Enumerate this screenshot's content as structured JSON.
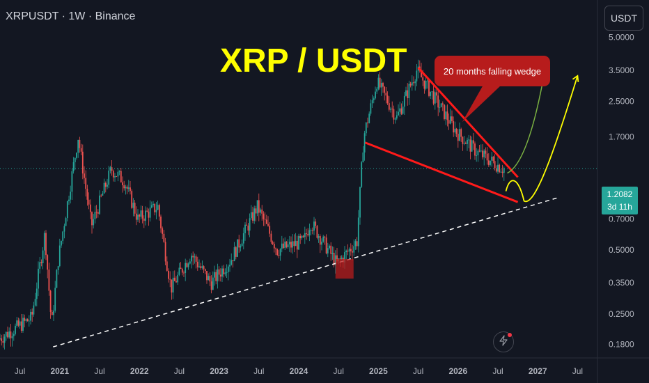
{
  "header": {
    "symbol": "XRPUSDT · 1W · Binance",
    "currency_button": "USDT"
  },
  "current_price": {
    "value": "1.2082",
    "countdown": "3d 11h"
  },
  "colors": {
    "background": "#131722",
    "up": "#26a69a",
    "down": "#ef5350",
    "wedge": "#ff1a1a",
    "title": "#ffff00",
    "callout": "#b71c1c",
    "projection_green": "#7cb342",
    "projection_yellow": "#ffff00",
    "support_line": "#ffffff"
  },
  "icons": {
    "alert": "lightning-bolt-icon"
  },
  "chart_data": {
    "type": "candlestick",
    "title": "XRP / USDT",
    "y_scale": "log",
    "ylim": [
      0.16,
      7.5
    ],
    "x_range": [
      "2020-04",
      "2027-10"
    ],
    "y_ticks": [
      "5.0000",
      "3.5000",
      "2.5000",
      "1.7000",
      "0.7000",
      "0.5000",
      "0.3500",
      "0.2500",
      "0.1800"
    ],
    "x_ticks": [
      "Jul",
      "2021",
      "Jul",
      "2022",
      "Jul",
      "2023",
      "Jul",
      "2024",
      "Jul",
      "2025",
      "Jul",
      "2026",
      "Jul",
      "2027",
      "Jul"
    ],
    "price_path": [
      {
        "t": "2020-04",
        "p": 0.19
      },
      {
        "t": "2020-09",
        "p": 0.24
      },
      {
        "t": "2020-11",
        "p": 0.6
      },
      {
        "t": "2020-12",
        "p": 0.22
      },
      {
        "t": "2021-01",
        "p": 0.45
      },
      {
        "t": "2021-04",
        "p": 1.7
      },
      {
        "t": "2021-06",
        "p": 0.65
      },
      {
        "t": "2021-09",
        "p": 1.2
      },
      {
        "t": "2021-11",
        "p": 1.05
      },
      {
        "t": "2022-01",
        "p": 0.7
      },
      {
        "t": "2022-04",
        "p": 0.8
      },
      {
        "t": "2022-06",
        "p": 0.33
      },
      {
        "t": "2022-09",
        "p": 0.48
      },
      {
        "t": "2022-12",
        "p": 0.35
      },
      {
        "t": "2023-03",
        "p": 0.45
      },
      {
        "t": "2023-07",
        "p": 0.8
      },
      {
        "t": "2023-10",
        "p": 0.5
      },
      {
        "t": "2024-02",
        "p": 0.55
      },
      {
        "t": "2024-03",
        "p": 0.68
      },
      {
        "t": "2024-07",
        "p": 0.43
      },
      {
        "t": "2024-10",
        "p": 0.55
      },
      {
        "t": "2024-11",
        "p": 1.7
      },
      {
        "t": "2025-01",
        "p": 3.1
      },
      {
        "t": "2025-04",
        "p": 2.1
      },
      {
        "t": "2025-07",
        "p": 3.5
      },
      {
        "t": "2025-10",
        "p": 2.5
      },
      {
        "t": "2026-01",
        "p": 1.8
      },
      {
        "t": "2026-04",
        "p": 1.45
      },
      {
        "t": "2026-08",
        "p": 1.21
      }
    ],
    "annotations": {
      "callout": "20 months falling wedge",
      "wedge_upper": [
        {
          "t": "2025-07",
          "p": 3.6
        },
        {
          "t": "2026-10",
          "p": 1.1
        }
      ],
      "wedge_lower": [
        {
          "t": "2024-11",
          "p": 1.6
        },
        {
          "t": "2026-10",
          "p": 0.84
        }
      ],
      "support_line": [
        {
          "t": "2020-12",
          "p": 0.175
        },
        {
          "t": "2027-04",
          "p": 0.88
        }
      ],
      "green_projection_to": {
        "t": "2027-02",
        "p": 3.4
      },
      "yellow_projection_to": {
        "t": "2027-07",
        "p": 3.3
      },
      "highlight_box": {
        "t": "2024-08",
        "p": 0.42
      }
    }
  }
}
